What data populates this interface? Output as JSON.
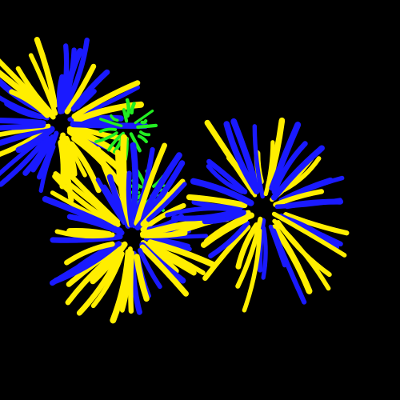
{
  "scene": {
    "background_color": "#000000",
    "palette": {
      "yellow": "#ffee00",
      "blue": "#1a1aff",
      "green": "#22ee22"
    },
    "bursts": [
      {
        "name": "burst-top-left",
        "colors": [
          "yellow",
          "blue"
        ]
      },
      {
        "name": "burst-center-green",
        "colors": [
          "green"
        ]
      },
      {
        "name": "burst-small-green",
        "colors": [
          "green"
        ]
      },
      {
        "name": "burst-bottom-left",
        "colors": [
          "yellow",
          "blue"
        ]
      },
      {
        "name": "burst-right",
        "colors": [
          "yellow",
          "blue"
        ]
      }
    ]
  }
}
